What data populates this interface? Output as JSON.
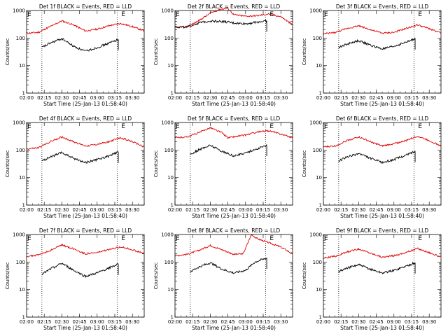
{
  "figure": {
    "xlabel": "Start Time (25-Jan-13 01:58:40)",
    "ylabel": "Counts/sec",
    "event_marker_label": "E",
    "colors": {
      "events": "#000000",
      "lld": "#dd0000",
      "axes": "#000000"
    }
  },
  "chart_data": [
    {
      "type": "line",
      "title": "Det 1f BLACK = Events, RED = LLD",
      "xlim": [
        "02:00",
        "03:40"
      ],
      "ylim": [
        1,
        1000
      ],
      "yscale": "log",
      "xticks": [
        "02:00",
        "02:15",
        "02:30",
        "02:45",
        "03:00",
        "03:15",
        "03:30"
      ],
      "yticks": [
        "1",
        "10",
        "100",
        "1000"
      ],
      "vlines": [
        "02:13",
        "03:17"
      ],
      "event_markers": [
        "02:00",
        "03:20"
      ],
      "series": [
        {
          "name": "LLD",
          "x": [
            "02:00",
            "02:10",
            "02:20",
            "02:30",
            "02:40",
            "02:50",
            "03:00",
            "03:10",
            "03:20",
            "03:30",
            "03:40"
          ],
          "values": [
            150,
            160,
            260,
            420,
            300,
            180,
            210,
            280,
            340,
            260,
            180
          ]
        },
        {
          "name": "Events",
          "x": [
            "02:13",
            "02:20",
            "02:30",
            "02:40",
            "02:50",
            "03:00",
            "03:10",
            "03:18"
          ],
          "values": [
            45,
            65,
            95,
            50,
            33,
            45,
            65,
            90
          ]
        }
      ]
    },
    {
      "type": "line",
      "title": "Det 2f BLACK = Events, RED = LLD",
      "xlim": [
        "02:00",
        "03:40"
      ],
      "ylim": [
        1,
        1000
      ],
      "yscale": "log",
      "xticks": [
        "02:00",
        "02:15",
        "02:30",
        "02:45",
        "03:00",
        "03:15",
        "03:30"
      ],
      "yticks": [
        "1",
        "10",
        "100",
        "1000"
      ],
      "vlines": [
        "02:13",
        "03:17"
      ],
      "event_markers": [
        "02:00",
        "03:20"
      ],
      "series": [
        {
          "name": "LLD",
          "x": [
            "02:00",
            "02:10",
            "02:20",
            "02:30",
            "02:38",
            "02:45",
            "02:50",
            "03:00",
            "03:10",
            "03:15",
            "03:20",
            "03:30",
            "03:40"
          ],
          "values": [
            250,
            250,
            420,
            800,
            1100,
            1200,
            700,
            620,
            650,
            700,
            750,
            600,
            300
          ]
        },
        {
          "name": "Events",
          "x": [
            "02:00",
            "02:10",
            "02:20",
            "02:30",
            "02:40",
            "02:50",
            "03:00",
            "03:10",
            "03:18"
          ],
          "values": [
            250,
            250,
            350,
            420,
            400,
            350,
            330,
            380,
            420
          ]
        }
      ]
    },
    {
      "type": "line",
      "title": "Det 3f BLACK = Events, RED = LLD",
      "xlim": [
        "02:00",
        "03:40"
      ],
      "ylim": [
        1,
        1000
      ],
      "yscale": "log",
      "xticks": [
        "02:00",
        "02:15",
        "02:30",
        "02:45",
        "03:00",
        "03:15",
        "03:30"
      ],
      "yticks": [
        "1",
        "10",
        "100",
        "1000"
      ],
      "vlines": [
        "02:13",
        "03:17"
      ],
      "event_markers": [
        "02:00",
        "03:20"
      ],
      "series": [
        {
          "name": "LLD",
          "x": [
            "02:00",
            "02:10",
            "02:20",
            "02:30",
            "02:40",
            "02:50",
            "03:00",
            "03:10",
            "03:20",
            "03:30",
            "03:40"
          ],
          "values": [
            140,
            160,
            220,
            280,
            200,
            150,
            160,
            220,
            300,
            220,
            150
          ]
        },
        {
          "name": "Events",
          "x": [
            "02:13",
            "02:20",
            "02:30",
            "02:40",
            "02:50",
            "03:00",
            "03:10",
            "03:18"
          ],
          "values": [
            45,
            60,
            80,
            55,
            40,
            50,
            70,
            95
          ]
        }
      ]
    },
    {
      "type": "line",
      "title": "Det 4f BLACK = Events, RED = LLD",
      "xlim": [
        "02:00",
        "03:40"
      ],
      "ylim": [
        1,
        1000
      ],
      "yscale": "log",
      "xticks": [
        "02:00",
        "02:15",
        "02:30",
        "02:45",
        "03:00",
        "03:15",
        "03:30"
      ],
      "yticks": [
        "1",
        "10",
        "100",
        "1000"
      ],
      "vlines": [
        "02:13",
        "03:17"
      ],
      "event_markers": [
        "02:00",
        "03:20"
      ],
      "series": [
        {
          "name": "LLD",
          "x": [
            "02:00",
            "02:10",
            "02:20",
            "02:30",
            "02:40",
            "02:50",
            "03:00",
            "03:10",
            "03:20",
            "03:30",
            "03:40"
          ],
          "values": [
            110,
            120,
            200,
            300,
            200,
            140,
            160,
            200,
            280,
            200,
            130
          ]
        },
        {
          "name": "Events",
          "x": [
            "02:13",
            "02:20",
            "02:30",
            "02:40",
            "02:50",
            "03:00",
            "03:10",
            "03:18"
          ],
          "values": [
            40,
            55,
            80,
            50,
            35,
            45,
            60,
            85
          ]
        }
      ]
    },
    {
      "type": "line",
      "title": "Det 5f BLACK = Events, RED = LLD",
      "xlim": [
        "02:00",
        "03:40"
      ],
      "ylim": [
        1,
        1000
      ],
      "yscale": "log",
      "xticks": [
        "02:00",
        "02:15",
        "02:30",
        "02:45",
        "03:00",
        "03:15",
        "03:30"
      ],
      "yticks": [
        "1",
        "10",
        "100",
        "1000"
      ],
      "vlines": [
        "02:13",
        "03:17"
      ],
      "event_markers": [
        "02:00",
        "03:20"
      ],
      "series": [
        {
          "name": "LLD",
          "x": [
            "02:00",
            "02:10",
            "02:20",
            "02:30",
            "02:40",
            "02:45",
            "02:50",
            "03:00",
            "03:10",
            "03:20",
            "03:30",
            "03:40"
          ],
          "values": [
            280,
            300,
            420,
            650,
            420,
            280,
            300,
            350,
            450,
            500,
            380,
            280
          ]
        },
        {
          "name": "Events",
          "x": [
            "02:13",
            "02:20",
            "02:30",
            "02:40",
            "02:50",
            "03:00",
            "03:10",
            "03:18"
          ],
          "values": [
            70,
            100,
            150,
            90,
            60,
            80,
            110,
            150
          ]
        }
      ]
    },
    {
      "type": "line",
      "title": "Det 6f BLACK = Events, RED = LLD",
      "xlim": [
        "02:00",
        "03:40"
      ],
      "ylim": [
        1,
        1000
      ],
      "yscale": "log",
      "xticks": [
        "02:00",
        "02:15",
        "02:30",
        "02:45",
        "03:00",
        "03:15",
        "03:30"
      ],
      "yticks": [
        "1",
        "10",
        "100",
        "1000"
      ],
      "vlines": [
        "02:13",
        "03:17"
      ],
      "event_markers": [
        "02:00",
        "03:20"
      ],
      "series": [
        {
          "name": "LLD",
          "x": [
            "02:00",
            "02:10",
            "02:20",
            "02:30",
            "02:40",
            "02:50",
            "03:00",
            "03:10",
            "03:20",
            "03:30",
            "03:40"
          ],
          "values": [
            130,
            140,
            220,
            300,
            200,
            140,
            170,
            220,
            320,
            220,
            140
          ]
        },
        {
          "name": "Events",
          "x": [
            "02:13",
            "02:20",
            "02:30",
            "02:40",
            "02:50",
            "03:00",
            "03:10",
            "03:18"
          ],
          "values": [
            40,
            55,
            75,
            50,
            35,
            45,
            65,
            90
          ]
        }
      ]
    },
    {
      "type": "line",
      "title": "Det 7f BLACK = Events, RED = LLD",
      "xlim": [
        "02:00",
        "03:40"
      ],
      "ylim": [
        1,
        1000
      ],
      "yscale": "log",
      "xticks": [
        "02:00",
        "02:15",
        "02:30",
        "02:45",
        "03:00",
        "03:15",
        "03:30"
      ],
      "yticks": [
        "1",
        "10",
        "100",
        "1000"
      ],
      "vlines": [
        "02:13",
        "03:17"
      ],
      "event_markers": [
        "02:00",
        "03:20"
      ],
      "series": [
        {
          "name": "LLD",
          "x": [
            "02:00",
            "02:10",
            "02:20",
            "02:30",
            "02:40",
            "02:50",
            "03:00",
            "03:10",
            "03:20",
            "03:30",
            "03:40"
          ],
          "values": [
            160,
            180,
            260,
            420,
            300,
            200,
            220,
            280,
            360,
            280,
            200
          ]
        },
        {
          "name": "Events",
          "x": [
            "02:13",
            "02:20",
            "02:30",
            "02:40",
            "02:50",
            "03:00",
            "03:10",
            "03:18"
          ],
          "values": [
            35,
            55,
            90,
            50,
            30,
            40,
            60,
            85
          ]
        }
      ]
    },
    {
      "type": "line",
      "title": "Det 8f BLACK = Events, RED = LLD",
      "xlim": [
        "02:00",
        "03:40"
      ],
      "ylim": [
        1,
        1000
      ],
      "yscale": "log",
      "xticks": [
        "02:00",
        "02:15",
        "02:30",
        "02:45",
        "03:00",
        "03:15",
        "03:30"
      ],
      "yticks": [
        "1",
        "10",
        "100",
        "1000"
      ],
      "vlines": [
        "02:13",
        "03:17"
      ],
      "event_markers": [
        "02:00",
        "03:20"
      ],
      "series": [
        {
          "name": "LLD",
          "x": [
            "02:00",
            "02:10",
            "02:20",
            "02:30",
            "02:40",
            "02:50",
            "02:58",
            "03:05",
            "03:10",
            "03:20",
            "03:30",
            "03:40"
          ],
          "values": [
            170,
            190,
            260,
            400,
            280,
            190,
            200,
            1000,
            700,
            500,
            350,
            200
          ]
        },
        {
          "name": "Events",
          "x": [
            "02:13",
            "02:20",
            "02:30",
            "02:40",
            "02:50",
            "03:00",
            "03:08",
            "03:18"
          ],
          "values": [
            45,
            65,
            95,
            55,
            40,
            50,
            100,
            140
          ]
        }
      ]
    },
    {
      "type": "line",
      "title": "Det 9f BLACK = Events, RED = LLD",
      "xlim": [
        "02:00",
        "03:40"
      ],
      "ylim": [
        1,
        1000
      ],
      "yscale": "log",
      "xticks": [
        "02:00",
        "02:15",
        "02:30",
        "02:45",
        "03:00",
        "03:15",
        "03:30"
      ],
      "yticks": [
        "1",
        "10",
        "100",
        "1000"
      ],
      "vlines": [
        "02:13",
        "03:17"
      ],
      "event_markers": [
        "02:00",
        "03:20"
      ],
      "series": [
        {
          "name": "LLD",
          "x": [
            "02:00",
            "02:10",
            "02:20",
            "02:30",
            "02:40",
            "02:50",
            "03:00",
            "03:10",
            "03:20",
            "03:30",
            "03:40"
          ],
          "values": [
            140,
            160,
            230,
            300,
            210,
            150,
            170,
            220,
            310,
            220,
            150
          ]
        },
        {
          "name": "Events",
          "x": [
            "02:13",
            "02:20",
            "02:30",
            "02:40",
            "02:50",
            "03:00",
            "03:10",
            "03:18"
          ],
          "values": [
            45,
            60,
            80,
            55,
            40,
            50,
            70,
            95
          ]
        }
      ]
    }
  ]
}
